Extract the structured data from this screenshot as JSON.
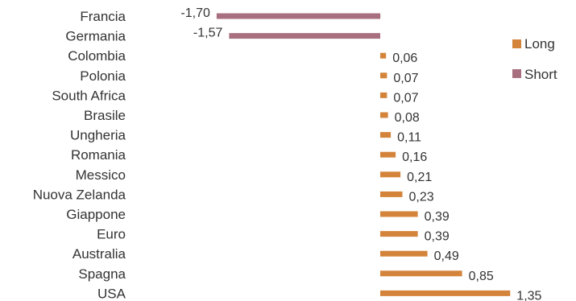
{
  "chart_data": {
    "type": "bar",
    "orientation": "horizontal",
    "grid": false,
    "legend_position": "right",
    "categories": [
      "Francia",
      "Germania",
      "Colombia",
      "Polonia",
      "South Africa",
      "Brasile",
      "Ungheria",
      "Romania",
      "Messico",
      "Nuova Zelanda",
      "Giappone",
      "Euro",
      "Australia",
      "Spagna",
      "USA"
    ],
    "series": [
      {
        "name": "Long",
        "color": "#d4843a",
        "values": [
          null,
          null,
          0.06,
          0.07,
          0.07,
          0.08,
          0.11,
          0.16,
          0.21,
          0.23,
          0.39,
          0.39,
          0.49,
          0.85,
          1.35
        ]
      },
      {
        "name": "Short",
        "color": "#a8707f",
        "values": [
          -1.7,
          -1.57,
          null,
          null,
          null,
          null,
          null,
          null,
          null,
          null,
          null,
          null,
          null,
          null,
          null
        ]
      }
    ],
    "value_labels": [
      "-1,70",
      "-1,57",
      "0,06",
      "0,07",
      "0,07",
      "0,08",
      "0,11",
      "0,16",
      "0,21",
      "0,23",
      "0,39",
      "0,39",
      "0,49",
      "0,85",
      "1,35"
    ]
  }
}
